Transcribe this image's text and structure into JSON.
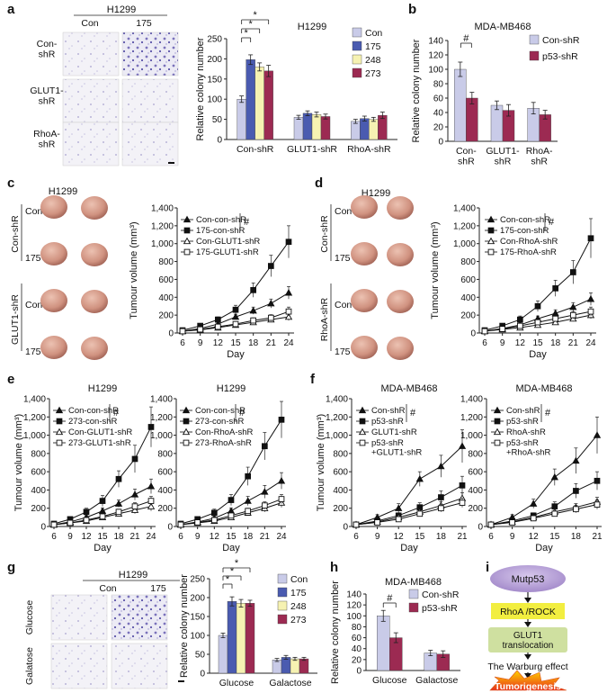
{
  "colors": {
    "con": "#c9cbe8",
    "c175": "#4a5bb0",
    "c248": "#f6f2b2",
    "c273": "#9c2a52",
    "shr_con": "#c9cbe8",
    "shr_p53": "#9c2a52",
    "mutp53": "#b6a0d6",
    "rhoa": "#f2ee40",
    "glut1": "#cfe0a0",
    "tumor": "#d18e7c"
  },
  "panel_a": {
    "letter": "a",
    "photo_header": "H1299",
    "photo_cols": [
      "Con",
      "175"
    ],
    "photo_rows": [
      "Con-\nshR",
      "GLUT1-\nshR",
      "RhoA-\nshR"
    ],
    "chart": {
      "type": "bar",
      "title": "H1299",
      "ylabel": "Relative colony number",
      "ylim": [
        0,
        250
      ],
      "yticks": [
        0,
        50,
        100,
        150,
        200,
        250
      ],
      "categories": [
        "Con-shR",
        "GLUT1-shR",
        "RhoA-shR"
      ],
      "series": [
        {
          "name": "Con",
          "values": [
            100,
            55,
            45
          ],
          "err": [
            8,
            5,
            5
          ]
        },
        {
          "name": "175",
          "values": [
            198,
            65,
            52
          ],
          "err": [
            12,
            6,
            6
          ]
        },
        {
          "name": "248",
          "values": [
            180,
            62,
            50
          ],
          "err": [
            10,
            6,
            5
          ]
        },
        {
          "name": "273",
          "values": [
            170,
            57,
            60
          ],
          "err": [
            14,
            6,
            8
          ]
        }
      ],
      "stars": [
        "*",
        "*",
        "*"
      ]
    }
  },
  "panel_b": {
    "letter": "b",
    "chart": {
      "type": "bar",
      "title": "MDA-MB468",
      "ylabel": "Relative colony number",
      "ylim": [
        0,
        140
      ],
      "yticks": [
        0,
        20,
        40,
        60,
        80,
        100,
        120,
        140
      ],
      "categories": [
        "Con-\nshR",
        "GLUT1-\nshR",
        "RhoA-\nshR"
      ],
      "series": [
        {
          "name": "Con-shR",
          "values": [
            100,
            50,
            46
          ],
          "err": [
            10,
            6,
            8
          ]
        },
        {
          "name": "p53-shR",
          "values": [
            60,
            43,
            37
          ],
          "err": [
            8,
            8,
            6
          ]
        }
      ],
      "mark": "#"
    }
  },
  "panel_c": {
    "letter": "c",
    "photo_title": "H1299",
    "groups": [
      "Con-shR",
      "GLUT1-shR"
    ],
    "rows": [
      "Con",
      "175",
      "Con",
      "175"
    ],
    "chart": {
      "type": "line",
      "ylabel": "Tumour volume (mm³)",
      "xlabel": "Day",
      "ylim": [
        0,
        1400
      ],
      "yticks": [
        0,
        200,
        400,
        600,
        800,
        "1,000",
        "1,200",
        "1,400"
      ],
      "x": [
        6,
        9,
        12,
        15,
        18,
        21,
        24
      ],
      "series": [
        {
          "name": "Con-con-shR",
          "marker": "tri-f",
          "values": [
            20,
            50,
            100,
            180,
            250,
            330,
            450
          ],
          "err": [
            10,
            15,
            20,
            30,
            40,
            50,
            70
          ]
        },
        {
          "name": "175-con-shR",
          "marker": "sq-f",
          "values": [
            30,
            80,
            150,
            260,
            480,
            750,
            1020
          ],
          "err": [
            10,
            20,
            30,
            50,
            80,
            120,
            180
          ]
        },
        {
          "name": "Con-GLUT1-shR",
          "marker": "tri-o",
          "values": [
            20,
            35,
            60,
            90,
            120,
            150,
            180
          ],
          "err": [
            5,
            10,
            15,
            20,
            25,
            30,
            40
          ]
        },
        {
          "name": "175-GLUT1-shR",
          "marker": "sq-o",
          "values": [
            20,
            40,
            70,
            100,
            140,
            170,
            240
          ],
          "err": [
            5,
            10,
            15,
            20,
            30,
            35,
            50
          ]
        }
      ],
      "mark": "#"
    }
  },
  "panel_d": {
    "letter": "d",
    "photo_title": "H1299",
    "groups": [
      "Con-shR",
      "RhoA-shR"
    ],
    "rows": [
      "Con",
      "175",
      "Con",
      "175"
    ],
    "chart": {
      "type": "line",
      "ylabel": "Tumour volume (mm³)",
      "xlabel": "Day",
      "ylim": [
        0,
        1400
      ],
      "yticks": [
        0,
        200,
        400,
        600,
        800,
        "1,000",
        "1,200",
        "1,400"
      ],
      "x": [
        6,
        9,
        12,
        15,
        18,
        21,
        24
      ],
      "series": [
        {
          "name": "Con-con-shR",
          "marker": "tri-f",
          "values": [
            20,
            50,
            90,
            160,
            220,
            290,
            380
          ],
          "err": [
            10,
            15,
            20,
            30,
            40,
            50,
            70
          ]
        },
        {
          "name": "175-con-shR",
          "marker": "sq-f",
          "values": [
            30,
            80,
            150,
            300,
            500,
            680,
            1060
          ],
          "err": [
            10,
            20,
            40,
            60,
            90,
            130,
            220
          ]
        },
        {
          "name": "Con-RhoA-shR",
          "marker": "tri-o",
          "values": [
            20,
            40,
            60,
            90,
            120,
            160,
            200
          ],
          "err": [
            5,
            10,
            15,
            20,
            25,
            30,
            40
          ]
        },
        {
          "name": "175-RhoA-shR",
          "marker": "sq-o",
          "values": [
            20,
            45,
            80,
            120,
            160,
            200,
            240
          ],
          "err": [
            5,
            10,
            15,
            20,
            30,
            40,
            50
          ]
        }
      ],
      "mark": "#"
    }
  },
  "panel_e": {
    "letter": "e",
    "chart_left": {
      "type": "line",
      "title": "H1299",
      "ylabel": "Tumour volume (mm³)",
      "xlabel": "Day",
      "ylim": [
        0,
        1400
      ],
      "yticks": [
        0,
        200,
        400,
        600,
        800,
        "1,000",
        "1,200",
        "1,400"
      ],
      "x": [
        6,
        9,
        12,
        15,
        18,
        21,
        24
      ],
      "series": [
        {
          "name": "Con-con-shR",
          "marker": "tri-f",
          "values": [
            20,
            50,
            100,
            170,
            250,
            350,
            440
          ],
          "err": [
            10,
            15,
            20,
            30,
            40,
            60,
            80
          ]
        },
        {
          "name": "273-con-shR",
          "marker": "sq-f",
          "values": [
            30,
            80,
            160,
            280,
            520,
            740,
            1090
          ],
          "err": [
            10,
            20,
            40,
            60,
            90,
            150,
            220
          ]
        },
        {
          "name": "Con-GLUT1-shR",
          "marker": "tri-o",
          "values": [
            20,
            40,
            60,
            100,
            140,
            180,
            220
          ],
          "err": [
            5,
            10,
            15,
            20,
            30,
            40,
            50
          ]
        },
        {
          "name": "273-GLUT1-shR",
          "marker": "sq-o",
          "values": [
            20,
            40,
            70,
            110,
            160,
            220,
            280
          ],
          "err": [
            5,
            10,
            15,
            20,
            30,
            40,
            50
          ]
        }
      ],
      "mark": "#"
    },
    "chart_right": {
      "type": "line",
      "title": "H1299",
      "ylabel": "",
      "xlabel": "Day",
      "ylim": [
        0,
        1400
      ],
      "yticks": [
        0,
        200,
        400,
        600,
        800,
        "1,000",
        "1,200",
        "1,400"
      ],
      "x": [
        6,
        9,
        12,
        15,
        18,
        21,
        24
      ],
      "series": [
        {
          "name": "Con-con-shR",
          "marker": "tri-f",
          "values": [
            20,
            50,
            90,
            170,
            280,
            380,
            500
          ],
          "err": [
            10,
            15,
            20,
            30,
            50,
            70,
            90
          ]
        },
        {
          "name": "273-con-shR",
          "marker": "sq-f",
          "values": [
            30,
            80,
            150,
            290,
            550,
            880,
            1170
          ],
          "err": [
            10,
            20,
            40,
            60,
            100,
            150,
            200
          ]
        },
        {
          "name": "Con-RhoA-shR",
          "marker": "tri-o",
          "values": [
            20,
            40,
            60,
            100,
            150,
            200,
            260
          ],
          "err": [
            5,
            10,
            15,
            20,
            30,
            40,
            50
          ]
        },
        {
          "name": "273-RhoA-shR",
          "marker": "sq-o",
          "values": [
            20,
            45,
            70,
            120,
            170,
            230,
            300
          ],
          "err": [
            5,
            10,
            15,
            20,
            30,
            40,
            50
          ]
        }
      ],
      "mark": "#"
    }
  },
  "panel_f": {
    "letter": "f",
    "chart_left": {
      "type": "line",
      "title": "MDA-MB468",
      "ylabel": "Tumour volume (mm³)",
      "xlabel": "Day",
      "ylim": [
        0,
        1400
      ],
      "yticks": [
        0,
        200,
        400,
        600,
        800,
        "1,000",
        "1,200",
        "1,400"
      ],
      "x": [
        6,
        9,
        12,
        15,
        18,
        21
      ],
      "series": [
        {
          "name": "Con-shR",
          "marker": "tri-f",
          "values": [
            20,
            100,
            200,
            520,
            660,
            880
          ],
          "err": [
            10,
            30,
            50,
            80,
            120,
            180
          ]
        },
        {
          "name": "p53-shR",
          "marker": "sq-f",
          "values": [
            20,
            60,
            120,
            210,
            320,
            450
          ],
          "err": [
            10,
            20,
            30,
            50,
            70,
            100
          ]
        },
        {
          "name": "GLUT1-shR",
          "marker": "tri-o",
          "values": [
            20,
            50,
            100,
            160,
            230,
            310
          ],
          "err": [
            5,
            10,
            20,
            30,
            40,
            60
          ]
        },
        {
          "name": "p53-shR\n+GLUT1-shR",
          "marker": "sq-o",
          "values": [
            20,
            45,
            80,
            140,
            200,
            260
          ],
          "err": [
            5,
            10,
            20,
            30,
            40,
            50
          ]
        }
      ],
      "mark": "#"
    },
    "chart_right": {
      "type": "line",
      "title": "MDA-MB468",
      "ylabel": "",
      "xlabel": "Day",
      "ylim": [
        0,
        1400
      ],
      "yticks": [
        0,
        200,
        400,
        600,
        800,
        "1,000",
        "1,200",
        "1,400"
      ],
      "x": [
        6,
        9,
        12,
        15,
        18,
        21
      ],
      "series": [
        {
          "name": "Con-shR",
          "marker": "tri-f",
          "values": [
            20,
            100,
            250,
            540,
            720,
            1000
          ],
          "err": [
            10,
            30,
            50,
            90,
            140,
            200
          ]
        },
        {
          "name": "p53-shR",
          "marker": "sq-f",
          "values": [
            20,
            60,
            120,
            220,
            390,
            500
          ],
          "err": [
            10,
            20,
            30,
            50,
            80,
            100
          ]
        },
        {
          "name": "RhoA-shR",
          "marker": "tri-o",
          "values": [
            20,
            50,
            100,
            160,
            210,
            270
          ],
          "err": [
            5,
            10,
            20,
            30,
            40,
            50
          ]
        },
        {
          "name": "p53-shR\n+RhoA-shR",
          "marker": "sq-o",
          "values": [
            20,
            45,
            90,
            140,
            190,
            240
          ],
          "err": [
            5,
            10,
            20,
            30,
            40,
            50
          ]
        }
      ],
      "mark": "#"
    }
  },
  "panel_g": {
    "letter": "g",
    "photo_header": "H1299",
    "photo_cols": [
      "Con",
      "175"
    ],
    "photo_rows": [
      "Glucose",
      "Galatose"
    ],
    "chart": {
      "type": "bar",
      "ylabel": "Relative colony number",
      "ylim": [
        0,
        250
      ],
      "yticks": [
        0,
        50,
        100,
        150,
        200,
        250
      ],
      "categories": [
        "Glucose",
        "Galactose"
      ],
      "series": [
        {
          "name": "Con",
          "values": [
            100,
            35
          ],
          "err": [
            6,
            4
          ]
        },
        {
          "name": "175",
          "values": [
            190,
            42
          ],
          "err": [
            12,
            5
          ]
        },
        {
          "name": "248",
          "values": [
            185,
            38
          ],
          "err": [
            10,
            4
          ]
        },
        {
          "name": "273",
          "values": [
            185,
            38
          ],
          "err": [
            8,
            4
          ]
        }
      ],
      "stars": [
        "*",
        "*",
        "*"
      ]
    }
  },
  "panel_h": {
    "letter": "h",
    "chart": {
      "type": "bar",
      "title": "MDA-MB468",
      "ylabel": "Relative colony number",
      "ylim": [
        0,
        140
      ],
      "yticks": [
        0,
        20,
        40,
        60,
        80,
        100,
        120,
        140
      ],
      "categories": [
        "Glucose",
        "Galactose"
      ],
      "series": [
        {
          "name": "Con-shR",
          "values": [
            100,
            32
          ],
          "err": [
            10,
            5
          ]
        },
        {
          "name": "p53-shR",
          "values": [
            60,
            30
          ],
          "err": [
            9,
            6
          ]
        }
      ],
      "mark": "#"
    }
  },
  "panel_i": {
    "letter": "i",
    "nodes": [
      "Mutp53",
      "RhoA /ROCK",
      "GLUT1\ntranslocation",
      "The Warburg effect",
      "Tumorigenesis"
    ]
  }
}
